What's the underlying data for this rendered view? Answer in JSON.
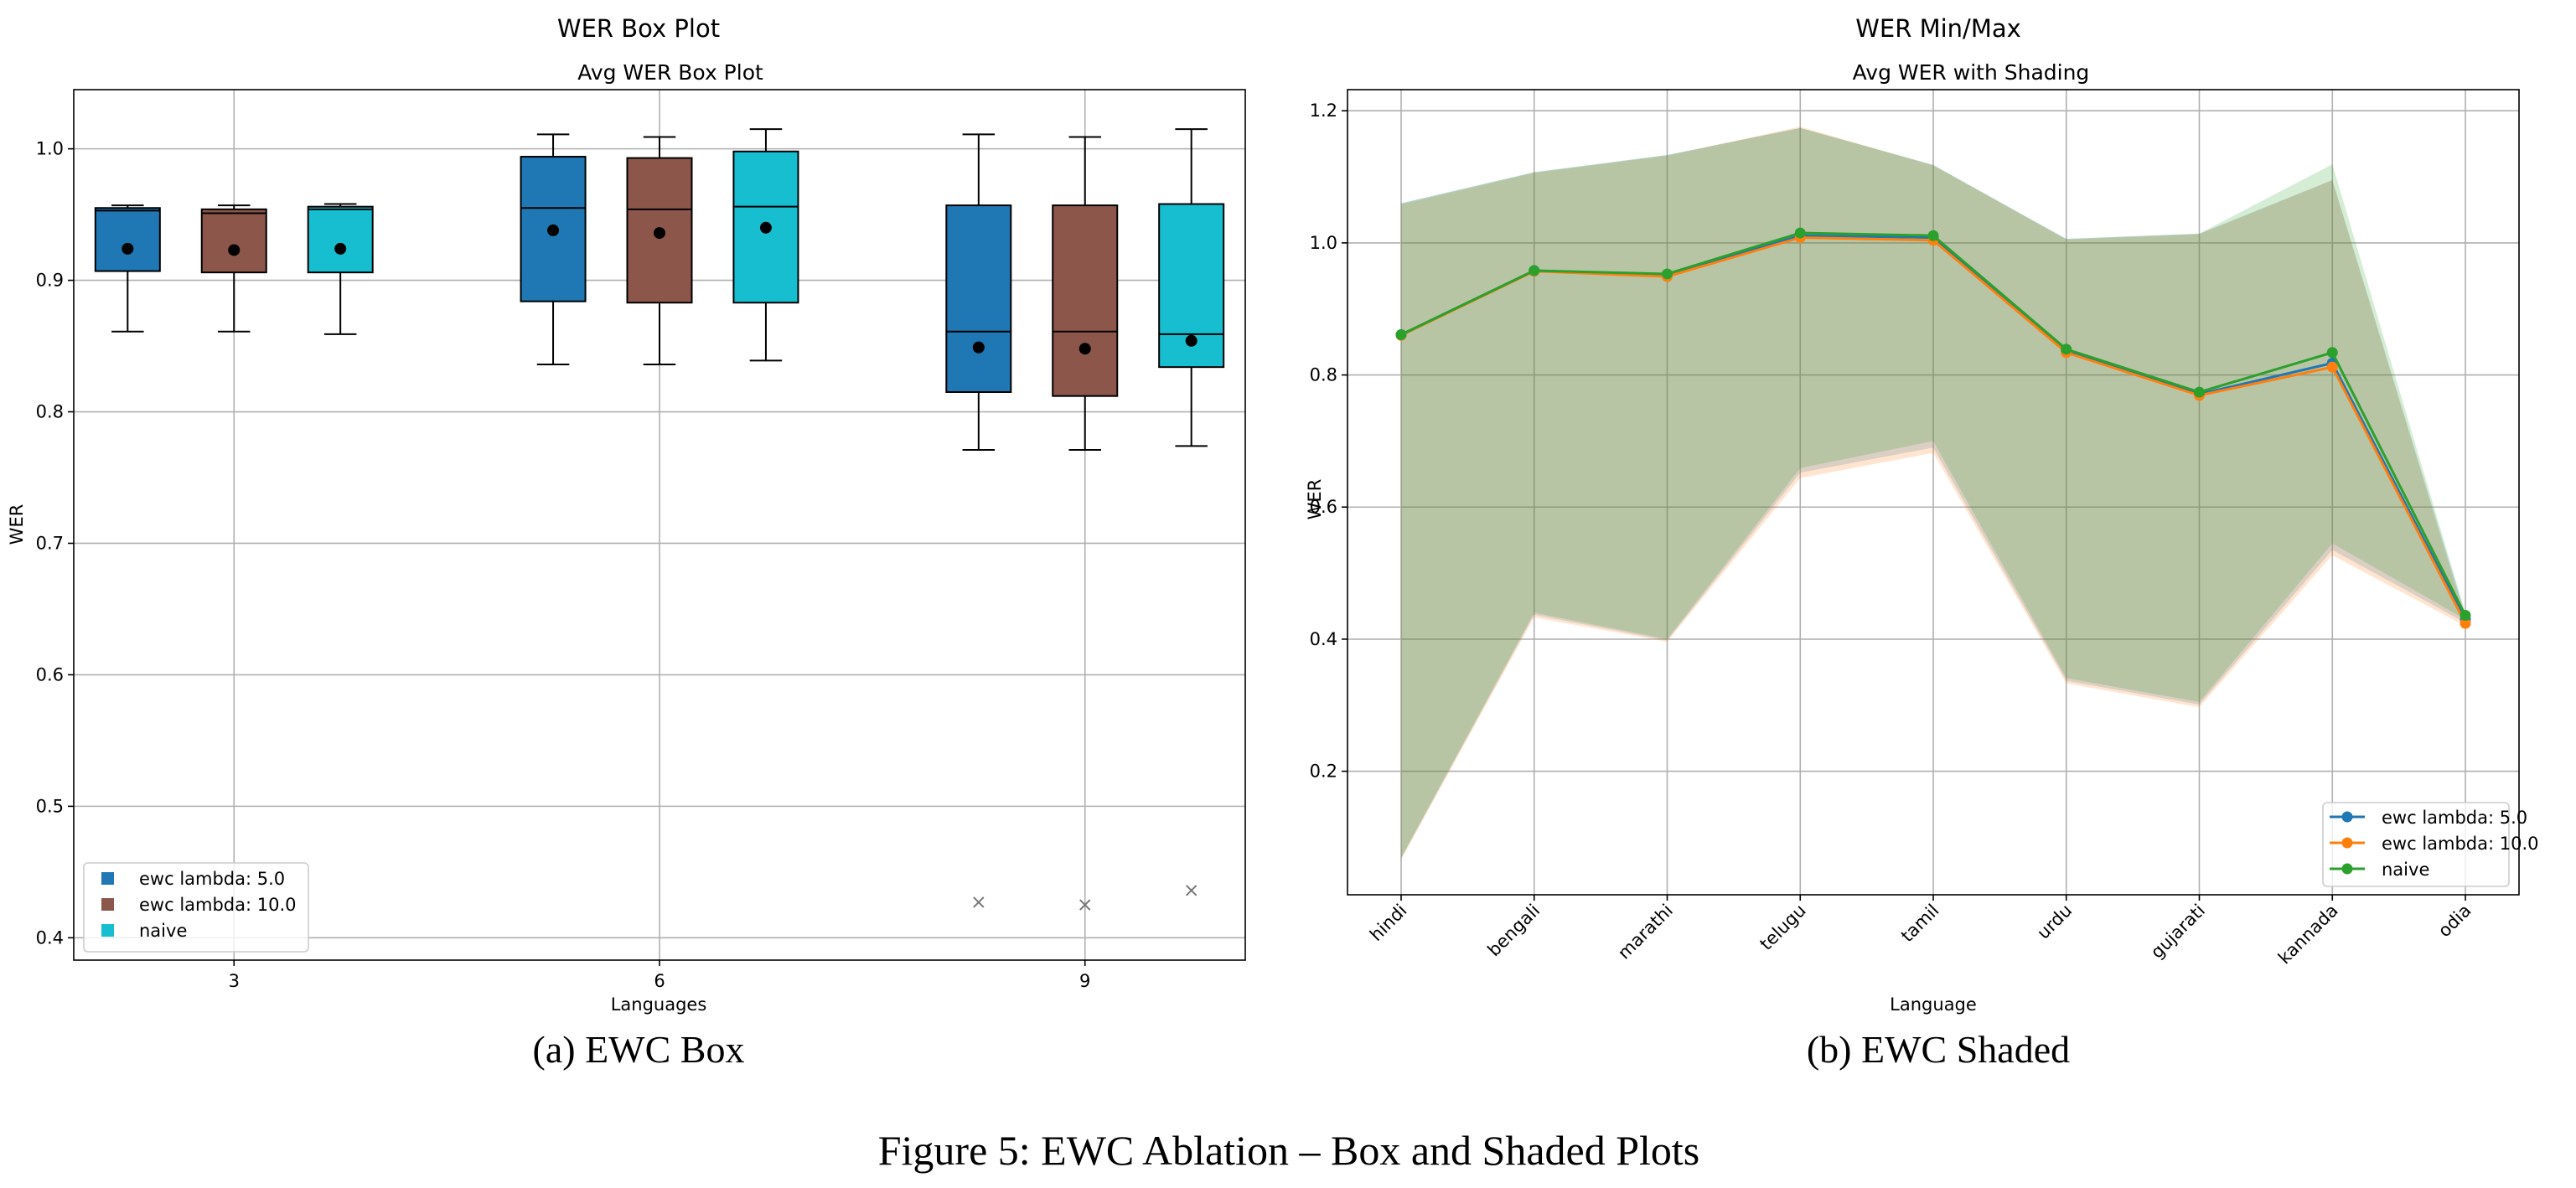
{
  "figure": {
    "caption": "Figure 5: EWC Ablation – Box and Shaded Plots",
    "subfigures": [
      {
        "label": "(a) EWC Box"
      },
      {
        "label": "(b) EWC Shaded"
      }
    ]
  },
  "chart_data": [
    {
      "type": "box",
      "suptitle": "WER Box Plot",
      "title": "Avg WER Box Plot",
      "xlabel": "Languages",
      "ylabel": "WER",
      "xlim": [
        1.87,
        10.13
      ],
      "ylim": [
        0.383,
        1.045
      ],
      "grid": true,
      "yticks": [
        0.4,
        0.5,
        0.6,
        0.7,
        0.8,
        0.9,
        1.0
      ],
      "ytick_labels": [
        "0.4",
        "0.5",
        "0.6",
        "0.7",
        "0.8",
        "0.9",
        "1.0"
      ],
      "categories": [
        "3",
        "6",
        "9"
      ],
      "x": [
        3,
        6,
        9
      ],
      "group_offset": 0.75,
      "box_width": 0.455,
      "legend": {
        "position": "lower-left",
        "entries": [
          "ewc lambda: 5.0",
          "ewc lambda: 10.0",
          "naive"
        ]
      },
      "series": [
        {
          "name": "ewc lambda: 5.0",
          "color": "#1f77b4",
          "boxes": [
            {
              "whislo": 0.861,
              "q1": 0.907,
              "med": 0.953,
              "q3": 0.955,
              "whishi": 0.957,
              "mean": 0.924,
              "fliers": []
            },
            {
              "whislo": 0.836,
              "q1": 0.884,
              "med": 0.955,
              "q3": 0.994,
              "whishi": 1.011,
              "mean": 0.938,
              "fliers": []
            },
            {
              "whislo": 0.771,
              "q1": 0.815,
              "med": 0.861,
              "q3": 0.957,
              "whishi": 1.011,
              "mean": 0.849,
              "fliers": [
                0.427
              ]
            }
          ]
        },
        {
          "name": "ewc lambda: 10.0",
          "color": "#8c564b",
          "boxes": [
            {
              "whislo": 0.861,
              "q1": 0.906,
              "med": 0.951,
              "q3": 0.954,
              "whishi": 0.957,
              "mean": 0.923,
              "fliers": []
            },
            {
              "whislo": 0.836,
              "q1": 0.883,
              "med": 0.954,
              "q3": 0.993,
              "whishi": 1.009,
              "mean": 0.936,
              "fliers": []
            },
            {
              "whislo": 0.771,
              "q1": 0.812,
              "med": 0.861,
              "q3": 0.957,
              "whishi": 1.009,
              "mean": 0.848,
              "fliers": [
                0.425
              ]
            }
          ]
        },
        {
          "name": "naive",
          "color": "#17becf",
          "boxes": [
            {
              "whislo": 0.859,
              "q1": 0.906,
              "med": 0.954,
              "q3": 0.956,
              "whishi": 0.958,
              "mean": 0.924,
              "fliers": []
            },
            {
              "whislo": 0.839,
              "q1": 0.883,
              "med": 0.956,
              "q3": 0.998,
              "whishi": 1.015,
              "mean": 0.94,
              "fliers": []
            },
            {
              "whislo": 0.774,
              "q1": 0.834,
              "med": 0.859,
              "q3": 0.958,
              "whishi": 1.015,
              "mean": 0.854,
              "fliers": [
                0.436
              ]
            }
          ]
        }
      ]
    },
    {
      "type": "line",
      "suptitle": "WER Min/Max",
      "title": "Avg WER with Shading",
      "xlabel": "Language",
      "ylabel": "WER",
      "ylim": [
        0.013,
        1.232
      ],
      "grid": true,
      "yticks": [
        0.2,
        0.4,
        0.6,
        0.8,
        1.0,
        1.2
      ],
      "ytick_labels": [
        "0.2",
        "0.4",
        "0.6",
        "0.8",
        "1.0",
        "1.2"
      ],
      "categories": [
        "hindi",
        "bengali",
        "marathi",
        "telugu",
        "tamil",
        "urdu",
        "gujarati",
        "kannada",
        "odia"
      ],
      "legend": {
        "position": "lower-right",
        "entries": [
          "ewc lambda: 5.0",
          "ewc lambda: 10.0",
          "naive"
        ]
      },
      "series": [
        {
          "name": "ewc lambda: 5.0",
          "color": "#1f77b4",
          "mean": [
            0.861,
            0.958,
            0.951,
            1.011,
            1.008,
            0.836,
            0.771,
            0.818,
            0.43
          ],
          "min": [
            0.068,
            0.437,
            0.398,
            0.652,
            0.69,
            0.337,
            0.301,
            0.535,
            0.425
          ],
          "max": [
            1.06,
            1.107,
            1.133,
            1.174,
            1.118,
            1.006,
            1.014,
            1.095,
            0.437
          ]
        },
        {
          "name": "ewc lambda: 10.0",
          "color": "#ff7f0e",
          "mean": [
            0.86,
            0.957,
            0.949,
            1.008,
            1.004,
            0.834,
            0.769,
            0.812,
            0.424
          ],
          "min": [
            0.066,
            0.433,
            0.396,
            0.644,
            0.682,
            0.333,
            0.297,
            0.527,
            0.42
          ],
          "max": [
            1.058,
            1.106,
            1.132,
            1.176,
            1.117,
            1.005,
            1.013,
            1.095,
            0.432
          ]
        },
        {
          "name": "naive",
          "color": "#2ca02c",
          "mean": [
            0.861,
            0.958,
            0.953,
            1.015,
            1.011,
            0.839,
            0.774,
            0.834,
            0.436
          ],
          "min": [
            0.069,
            0.44,
            0.4,
            0.659,
            0.7,
            0.341,
            0.305,
            0.545,
            0.43
          ],
          "max": [
            1.06,
            1.107,
            1.133,
            1.174,
            1.118,
            1.006,
            1.014,
            1.119,
            0.44
          ]
        }
      ]
    }
  ]
}
